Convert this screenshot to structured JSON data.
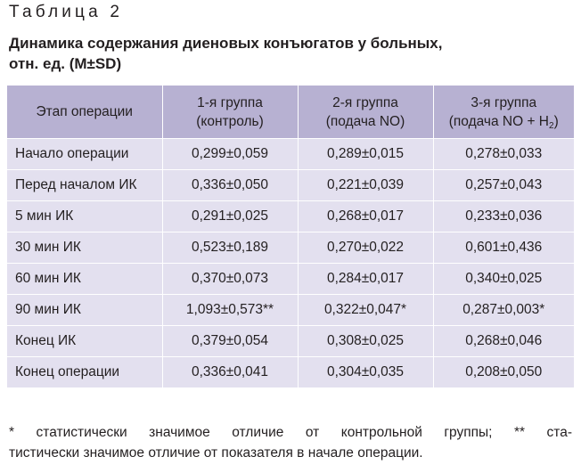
{
  "table_label": "Таблица 2",
  "caption": {
    "line1": "Динамика содержания диеновых конъюгатов у больных,",
    "line2": "отн. ед. (M±SD)"
  },
  "header": {
    "stage": "Этап операции",
    "group1": {
      "line1": "1-я группа",
      "line2": "(контроль)"
    },
    "group2": {
      "line1": "2-я группа",
      "line2": "(подача NO)"
    },
    "group3": {
      "line1": "3-я группа",
      "line2_prefix": "(подача NO + H",
      "line2_sub": "2",
      "line2_suffix": ")"
    }
  },
  "rows": [
    {
      "stage": "Начало операции",
      "g1": "0,299±0,059",
      "g2": "0,289±0,015",
      "g3": "0,278±0,033"
    },
    {
      "stage": "Перед началом ИК",
      "g1": "0,336±0,050",
      "g2": "0,221±0,039",
      "g3": "0,257±0,043"
    },
    {
      "stage": "5 мин ИК",
      "g1": "0,291±0,025",
      "g2": "0,268±0,017",
      "g3": "0,233±0,036"
    },
    {
      "stage": "30 мин ИК",
      "g1": "0,523±0,189",
      "g2": "0,270±0,022",
      "g3": "0,601±0,436"
    },
    {
      "stage": "60 мин ИК",
      "g1": "0,370±0,073",
      "g2": "0,284±0,017",
      "g3": "0,340±0,025"
    },
    {
      "stage": "90 мин ИК",
      "g1": "1,093±0,573**",
      "g2": "0,322±0,047*",
      "g3": "0,287±0,003*"
    },
    {
      "stage": "Конец ИК",
      "g1": "0,379±0,054",
      "g2": "0,308±0,025",
      "g3": "0,268±0,046"
    },
    {
      "stage": "Конец операции",
      "g1": "0,336±0,041",
      "g2": "0,304±0,035",
      "g3": "0,208±0,050"
    }
  ],
  "footnote": {
    "line1": "* статистически значимое отличие от контрольной группы; ** ста-",
    "line2": "тистически значимое отличие от показателя в начале операции."
  },
  "colors": {
    "header_bg": "#b7b1d2",
    "row_bg": "#e3e0ef",
    "text": "#231f20"
  }
}
